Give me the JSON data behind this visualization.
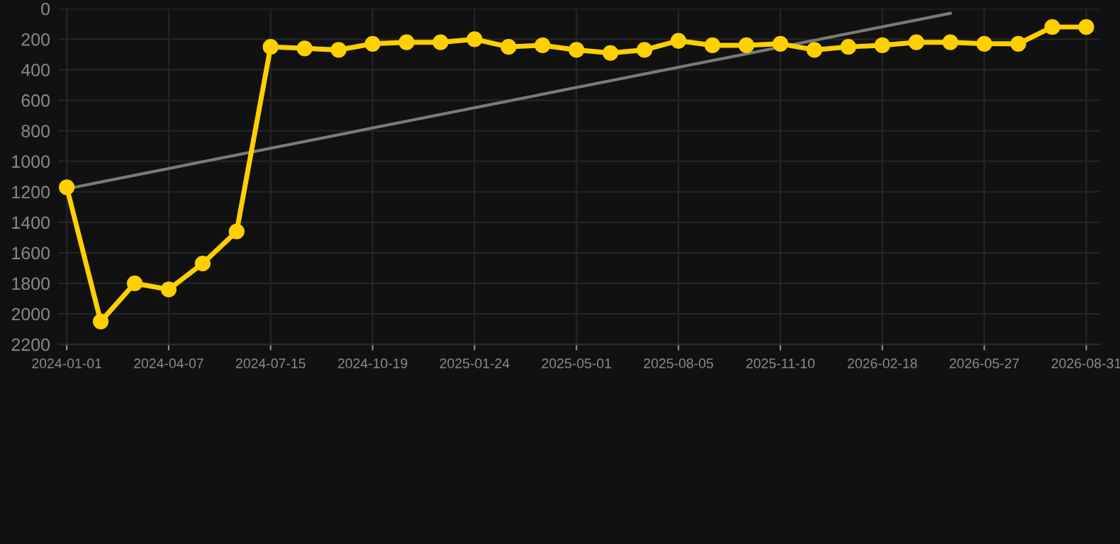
{
  "chart_data": {
    "type": "line",
    "categories": [
      "2024-01-01",
      null,
      null,
      "2024-04-07",
      null,
      null,
      "2024-07-15",
      null,
      null,
      "2024-10-19",
      null,
      null,
      "2025-01-24",
      null,
      null,
      "2025-05-01",
      null,
      null,
      "2025-08-05",
      null,
      null,
      "2025-11-10",
      null,
      null,
      "2026-02-18",
      null,
      null,
      "2026-05-27",
      null,
      null,
      "2026-08-31"
    ],
    "series": [
      {
        "color": "#ffd000",
        "marker": "circle",
        "values": [
          1170,
          2050,
          1800,
          1840,
          1670,
          1460,
          250,
          260,
          270,
          230,
          220,
          220,
          200,
          250,
          240,
          270,
          290,
          270,
          210,
          240,
          240,
          230,
          270,
          250,
          240,
          220,
          220,
          230,
          230,
          120,
          120
        ]
      },
      {
        "color": "#7a7a7a",
        "marker": "none",
        "values": [
          1180,
          null,
          null,
          null,
          null,
          null,
          null,
          null,
          null,
          null,
          null,
          null,
          null,
          null,
          null,
          null,
          null,
          null,
          null,
          null,
          null,
          null,
          null,
          null,
          null,
          null,
          30,
          null,
          null,
          null,
          null
        ]
      }
    ],
    "ylim": [
      2200,
      0
    ],
    "yticks": [
      0,
      200,
      400,
      600,
      800,
      1000,
      1200,
      1400,
      1600,
      1800,
      2000,
      2200
    ],
    "grid": true
  }
}
